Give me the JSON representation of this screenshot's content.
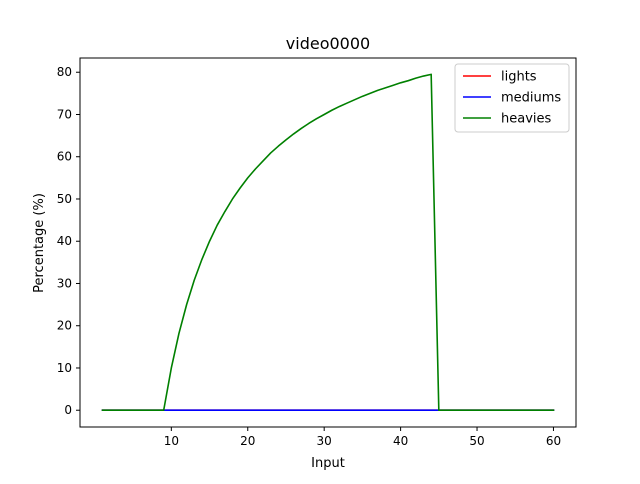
{
  "chart_data": {
    "type": "line",
    "title": "video0000",
    "xlabel": "Input",
    "ylabel": "Percentage (%)",
    "xlim": [
      -1.95,
      62.95
    ],
    "ylim": [
      -3.97,
      83.37
    ],
    "xticks": [
      10,
      20,
      30,
      40,
      50,
      60
    ],
    "yticks": [
      0,
      10,
      20,
      30,
      40,
      50,
      60,
      70,
      80
    ],
    "grid": false,
    "legend_position": "top-right",
    "series": [
      {
        "name": "lights",
        "color": "#ff0000",
        "x": [
          1,
          60
        ],
        "y": [
          0,
          0
        ]
      },
      {
        "name": "mediums",
        "color": "#0000ff",
        "x": [
          1,
          60
        ],
        "y": [
          0,
          0
        ]
      },
      {
        "name": "heavies",
        "color": "#008000",
        "x": [
          1,
          9,
          10,
          11,
          12,
          13,
          14,
          15,
          16,
          17,
          18,
          19,
          20,
          21,
          22,
          23,
          24,
          25,
          26,
          27,
          28,
          29,
          30,
          31,
          32,
          33,
          34,
          35,
          36,
          37,
          38,
          39,
          40,
          41,
          42,
          43,
          44,
          45,
          60
        ],
        "y": [
          0,
          0,
          10,
          18.2,
          25,
          30.8,
          35.7,
          40,
          43.8,
          47,
          50,
          52.6,
          55,
          57.1,
          59,
          60.9,
          62.5,
          64,
          65.4,
          66.7,
          67.9,
          69,
          70,
          71,
          71.9,
          72.7,
          73.5,
          74.3,
          75,
          75.7,
          76.3,
          76.9,
          77.5,
          78,
          78.6,
          79.1,
          79.5,
          0,
          0
        ]
      }
    ]
  }
}
